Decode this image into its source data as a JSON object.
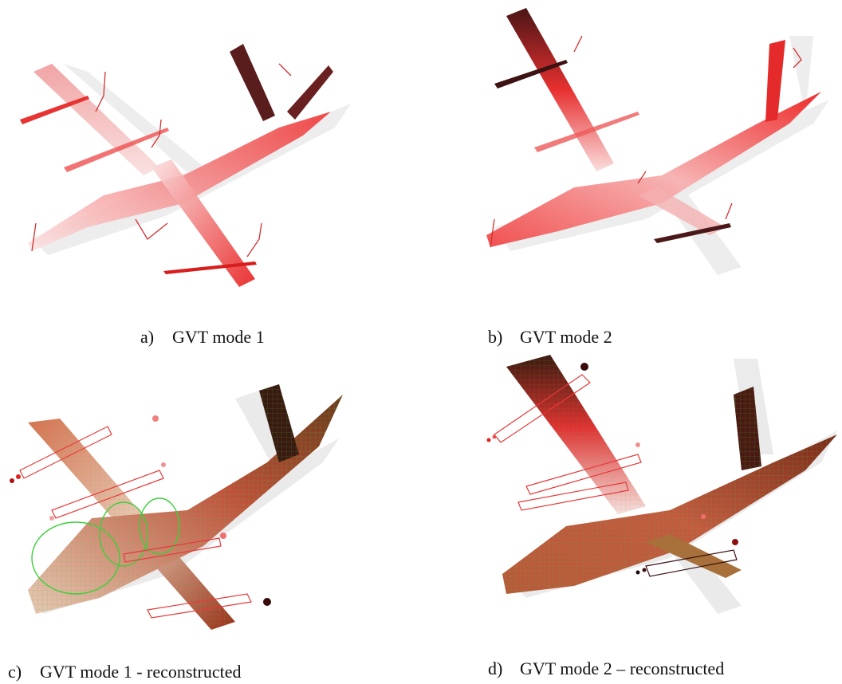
{
  "panels": [
    {
      "id": "a",
      "letter": "a)",
      "caption": "GVT mode 1"
    },
    {
      "id": "b",
      "letter": "b)",
      "caption": "GVT mode 2"
    },
    {
      "id": "c",
      "letter": "c)",
      "caption": "GVT mode 1 - reconstructed"
    },
    {
      "id": "d",
      "letter": "d)",
      "caption": "GVT mode 2 – reconstructed"
    }
  ],
  "colors": {
    "deformed_low": "#f6c9c9",
    "deformed_mid": "#ee3030",
    "deformed_high": "#4a1515",
    "undeformed": "#d8d8d8",
    "mesh": "#3ccf3c"
  }
}
